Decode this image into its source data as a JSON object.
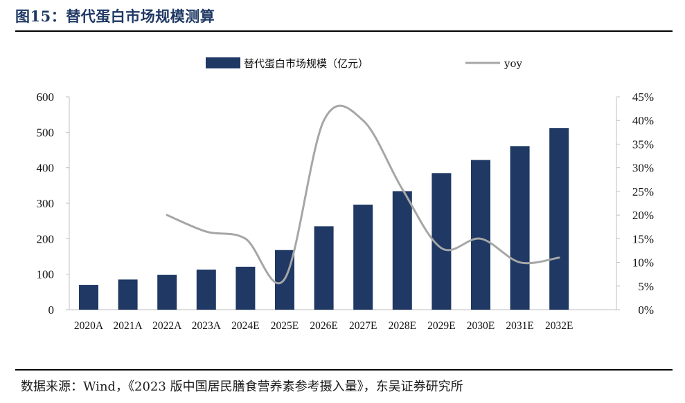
{
  "figure": {
    "title": "图15：替代蛋白市场规模测算",
    "source": "数据来源：Wind，《2023 版中国居民膳食营养素参考摄入量》，东吴证券研究所"
  },
  "colors": {
    "bar": "#1f3864",
    "line": "#a6a6a6",
    "axis": "#bfbfbf",
    "title": "#1f3864"
  },
  "chart_data": {
    "type": "bar",
    "categories": [
      "2020A",
      "2021A",
      "2022A",
      "2023A",
      "2024E",
      "2025E",
      "2026E",
      "2027E",
      "2028E",
      "2029E",
      "2030E",
      "2031E",
      "2032E"
    ],
    "series": [
      {
        "name": "替代蛋白市场规模（亿元）",
        "type": "bar",
        "axis": "left",
        "values": [
          70,
          85,
          98,
          113,
          121,
          168,
          235,
          296,
          334,
          385,
          422,
          461,
          512
        ]
      },
      {
        "name": "yoy",
        "type": "line",
        "axis": "right",
        "values": [
          null,
          null,
          0.2,
          0.165,
          0.15,
          0.065,
          0.4,
          0.4,
          0.255,
          0.13,
          0.15,
          0.1,
          0.11
        ]
      }
    ],
    "y_left": {
      "min": 0,
      "max": 600,
      "ticks": [
        0,
        100,
        200,
        300,
        400,
        500,
        600
      ]
    },
    "y_right": {
      "min": 0,
      "max": 0.45,
      "ticks": [
        "0%",
        "5%",
        "10%",
        "15%",
        "20%",
        "25%",
        "30%",
        "35%",
        "40%",
        "45%"
      ]
    },
    "legend": {
      "position": "top"
    },
    "grid": false
  }
}
